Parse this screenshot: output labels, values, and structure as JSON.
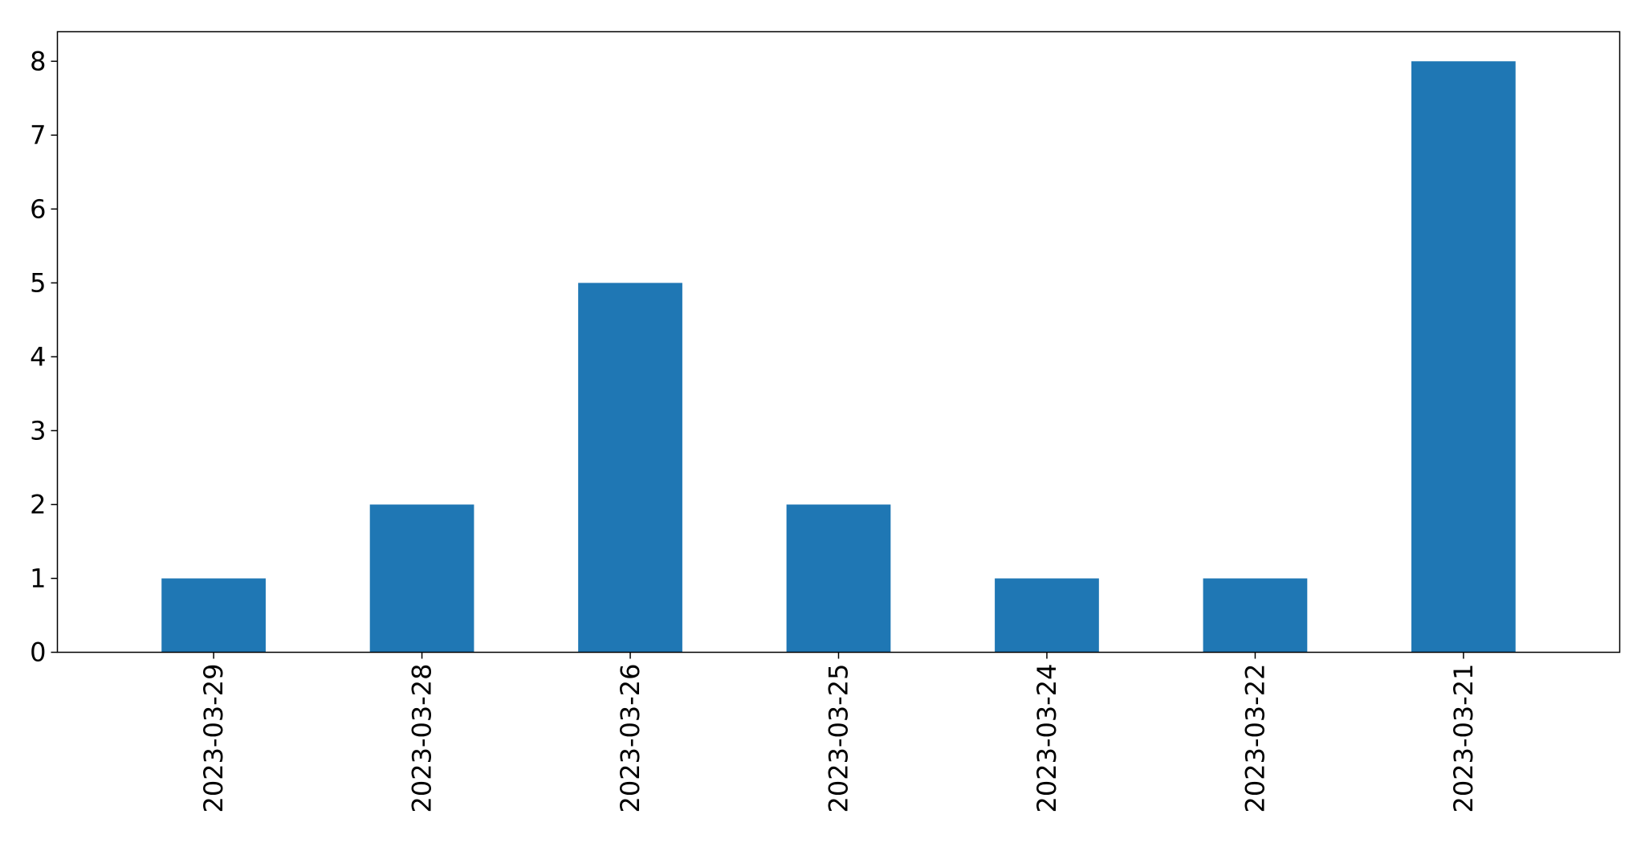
{
  "chart_data": {
    "type": "bar",
    "title": "",
    "xlabel": "",
    "ylabel": "",
    "categories": [
      "2023-03-29",
      "2023-03-28",
      "2023-03-26",
      "2023-03-25",
      "2023-03-24",
      "2023-03-22",
      "2023-03-21"
    ],
    "values": [
      1,
      2,
      5,
      2,
      1,
      1,
      8
    ],
    "ylim": [
      0,
      8.4
    ],
    "yticks": [
      0,
      1,
      2,
      3,
      4,
      5,
      6,
      7,
      8
    ],
    "grid": false,
    "legend": "none",
    "bar_color": "#1f77b4"
  }
}
